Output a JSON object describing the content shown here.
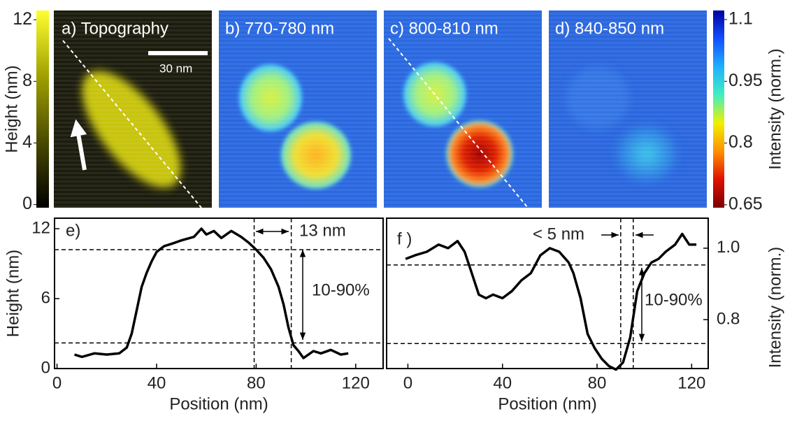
{
  "chart_data": [
    {
      "type": "colorbar",
      "label": "Height (nm)",
      "ylim": [
        -0.2,
        12.6
      ],
      "yticks": [
        0,
        4,
        8,
        12
      ],
      "colors": [
        "#000000",
        "#4a4a00",
        "#a0a000",
        "#ffff30"
      ]
    },
    {
      "type": "image",
      "title": "a) Topography",
      "scale_bar": "30 nm"
    },
    {
      "type": "image",
      "title": "b) 770-780 nm"
    },
    {
      "type": "image",
      "title": "c) 800-810 nm"
    },
    {
      "type": "image",
      "title": "d) 840-850 nm"
    },
    {
      "type": "colorbar",
      "label": "Intensity (norm.)",
      "ylim": [
        0.643,
        1.122
      ],
      "yticks": [
        0.65,
        0.8,
        0.95,
        1.1
      ],
      "colors": [
        "#7a0000",
        "#e01000",
        "#ff9000",
        "#f0f000",
        "#40f0c0",
        "#20b0ff",
        "#1050ff",
        "#0000a0"
      ]
    },
    {
      "type": "line",
      "panel_label": "e)",
      "width_label": "13 nm",
      "range_label": "10-90%",
      "xlabel": "Position (nm)",
      "ylabel": "Height (nm)",
      "y_axis_side": "left",
      "color": "#000000",
      "x": [
        7,
        10,
        15,
        20,
        25,
        28,
        30,
        32,
        34,
        36,
        38,
        40,
        43,
        46,
        50,
        55,
        58,
        60,
        63,
        66,
        70,
        74,
        77,
        80,
        83,
        86,
        89,
        91,
        93,
        95,
        97,
        99,
        103,
        106,
        110,
        114,
        117
      ],
      "values": [
        1.2,
        1.0,
        1.3,
        1.2,
        1.3,
        1.8,
        3,
        5,
        7,
        8.2,
        9.2,
        10,
        10.5,
        10.7,
        11,
        11.3,
        12,
        11.5,
        11.8,
        11.2,
        11.8,
        11.3,
        10.8,
        10.2,
        9.5,
        8.5,
        7,
        5.5,
        3.5,
        2,
        1.5,
        0.9,
        1.5,
        1.3,
        1.6,
        1.2,
        1.3
      ],
      "xlim": [
        -1,
        131
      ],
      "ylim": [
        0,
        12.9
      ],
      "xticks": [
        0,
        40,
        80,
        120
      ],
      "yticks": [
        0,
        6,
        12
      ],
      "hlines": [
        10.2,
        2.2
      ],
      "vlines": [
        79.2,
        94.1
      ]
    },
    {
      "type": "line",
      "panel_label": "f )",
      "width_label": "< 5 nm",
      "range_label": "10-90%",
      "xlabel": "Position (nm)",
      "ylabel": "Intensity (norm.)",
      "y_axis_side": "right",
      "color": "#000000",
      "x": [
        -1,
        3,
        8,
        13,
        17,
        21,
        24,
        27,
        30,
        33,
        36,
        40,
        44,
        48,
        52,
        56,
        60,
        64,
        68,
        70,
        73,
        76,
        79,
        82,
        85,
        88,
        91,
        94,
        97,
        100,
        103,
        106,
        109,
        113,
        116,
        119,
        122
      ],
      "values": [
        0.97,
        0.98,
        0.99,
        1.01,
        1.0,
        1.02,
        0.99,
        0.93,
        0.87,
        0.86,
        0.87,
        0.86,
        0.88,
        0.91,
        0.93,
        0.98,
        1.0,
        0.99,
        0.96,
        0.93,
        0.86,
        0.76,
        0.72,
        0.69,
        0.67,
        0.66,
        0.68,
        0.75,
        0.88,
        0.93,
        0.96,
        0.97,
        0.99,
        1.01,
        1.04,
        1.01,
        1.01
      ],
      "xlim": [
        -9,
        127
      ],
      "ylim": [
        0.663,
        1.084
      ],
      "xticks": [
        0,
        40,
        80,
        120
      ],
      "yticks": [
        0.8,
        {
          "value": 1.0,
          "label": "1.0"
        }
      ],
      "hlines": [
        0.953,
        0.733
      ],
      "vlines": [
        90,
        95.3
      ]
    }
  ]
}
